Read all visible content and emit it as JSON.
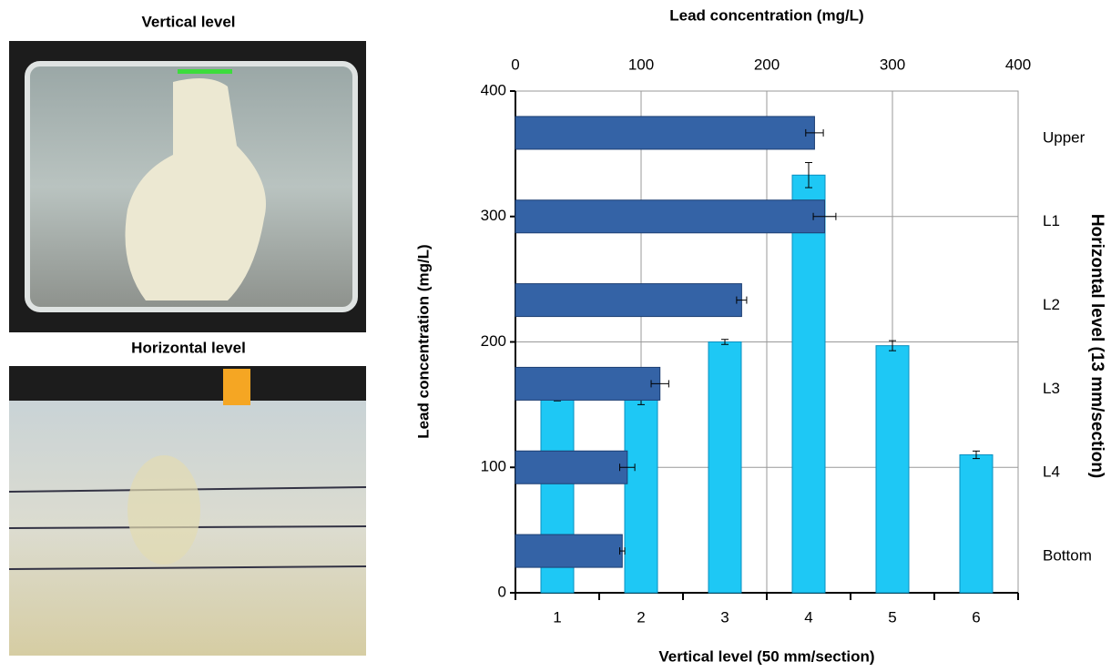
{
  "panels": {
    "vertical_title": "Vertical level",
    "horizontal_title": "Horizontal level"
  },
  "chart_data": [
    {
      "type": "bar",
      "xlabel": "Vertical level (50 mm/section)",
      "ylabel": "Lead concentration (mg/L)",
      "categories": [
        "1",
        "2",
        "3",
        "4",
        "5",
        "6"
      ],
      "values": [
        155,
        155,
        200,
        333,
        197,
        110
      ],
      "errors": [
        2,
        5,
        2,
        10,
        4,
        3
      ],
      "color": "#1ec8f5",
      "ylim": [
        0,
        400
      ],
      "yticks": [
        0,
        100,
        200,
        300,
        400
      ],
      "grid": true
    },
    {
      "type": "barh",
      "xlabel": "Lead concentration (mg/L)",
      "ylabel": "Horizontal level (13 mm/section)",
      "categories": [
        "Upper",
        "L1",
        "L2",
        "L3",
        "L4",
        "Bottom"
      ],
      "values": [
        238,
        246,
        180,
        115,
        89,
        85
      ],
      "errors": [
        7,
        9,
        4,
        7,
        6,
        2
      ],
      "color": "#3463a6",
      "xlim": [
        0,
        400
      ],
      "xticks": [
        0,
        100,
        200,
        300,
        400
      ],
      "grid": true
    }
  ]
}
